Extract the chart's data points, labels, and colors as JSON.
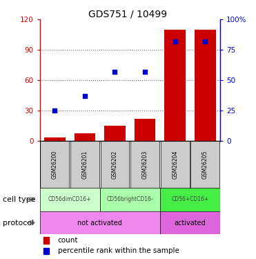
{
  "title": "GDS751 / 10499",
  "samples": [
    "GSM26200",
    "GSM26201",
    "GSM26202",
    "GSM26203",
    "GSM26204",
    "GSM26205"
  ],
  "count_values": [
    4,
    8,
    15,
    22,
    110,
    110
  ],
  "percentile_values": [
    25,
    37,
    57,
    57,
    82,
    82
  ],
  "ylim_left": [
    0,
    120
  ],
  "ylim_right": [
    0,
    100
  ],
  "yticks_left": [
    0,
    30,
    60,
    90,
    120
  ],
  "yticks_right": [
    0,
    25,
    50,
    75,
    100
  ],
  "ytick_labels_left": [
    "0",
    "30",
    "60",
    "90",
    "120"
  ],
  "ytick_labels_right": [
    "0",
    "25",
    "50",
    "75",
    "100%"
  ],
  "bar_color": "#cc0000",
  "dot_color": "#0000cc",
  "cell_types": [
    {
      "label": "CD56dimCD16+",
      "start": 0,
      "end": 2,
      "color": "#ccffcc"
    },
    {
      "label": "CD56brightCD16-",
      "start": 2,
      "end": 4,
      "color": "#aaffaa"
    },
    {
      "label": "CD56+CD16+",
      "start": 4,
      "end": 6,
      "color": "#44ee44"
    }
  ],
  "protocols": [
    {
      "label": "not activated",
      "start": 0,
      "end": 4,
      "color": "#ee88ee"
    },
    {
      "label": "activated",
      "start": 4,
      "end": 6,
      "color": "#dd66dd"
    }
  ],
  "label_count": "count",
  "label_percentile": "percentile rank within the sample",
  "cell_type_label": "cell type",
  "protocol_label": "protocol",
  "sample_bg_color": "#cccccc",
  "grid_color": "#666666"
}
